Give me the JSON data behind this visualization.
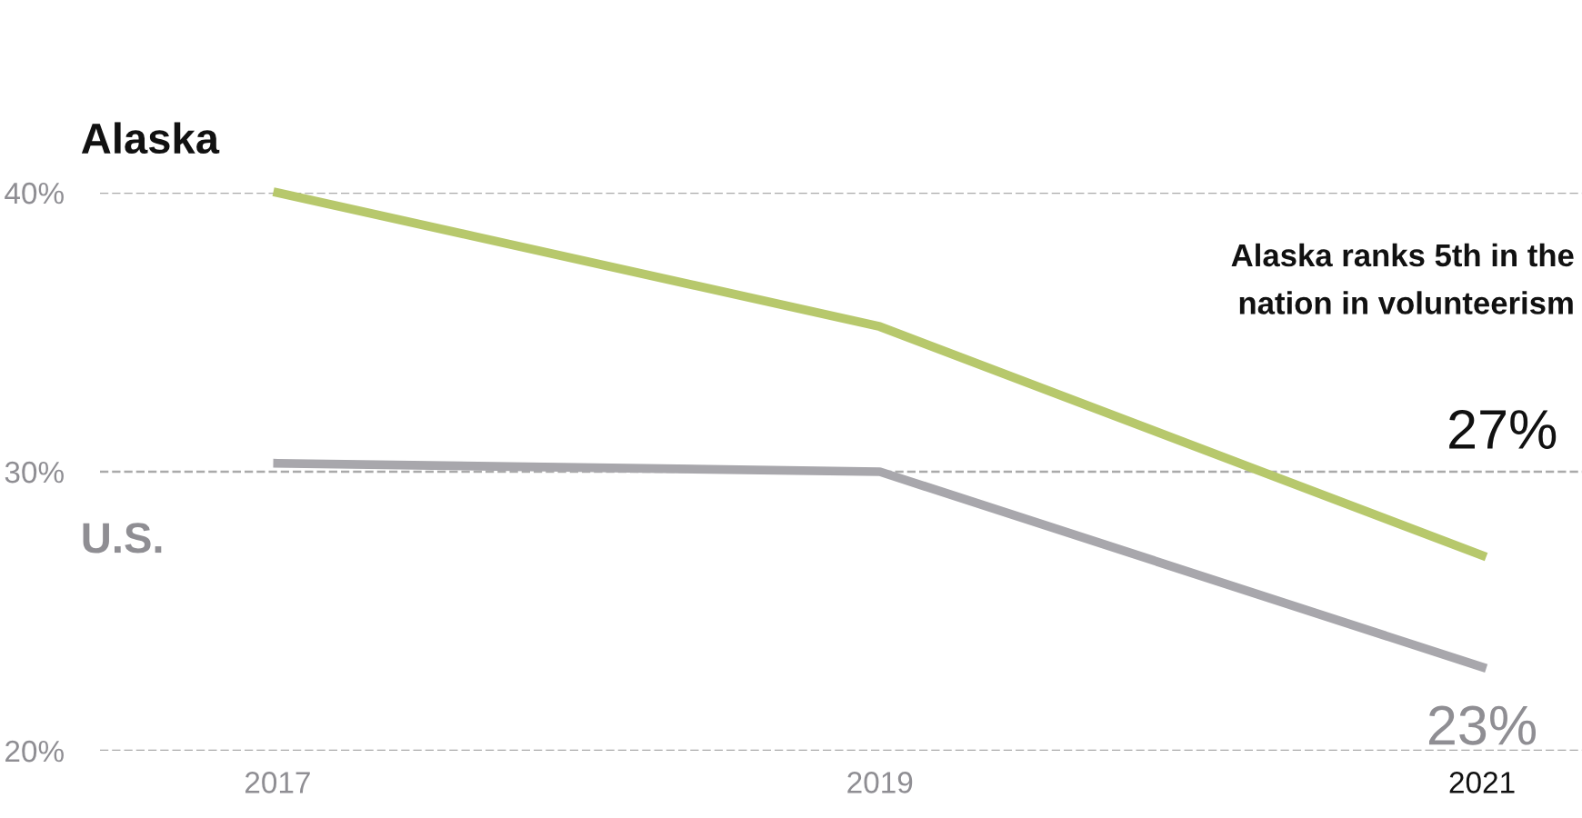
{
  "chart_data": {
    "type": "line",
    "categories": [
      "2017",
      "2019",
      "2021"
    ],
    "series": [
      {
        "name": "Alaska",
        "color": "#b7c86c",
        "values": [
          40,
          35.2,
          27
        ],
        "value_labels": [
          null,
          null,
          "27%"
        ]
      },
      {
        "name": "U.S.",
        "color": "#a8a7ac",
        "values": [
          30.3,
          30.0,
          23
        ],
        "value_labels": [
          null,
          null,
          "23%"
        ]
      }
    ],
    "ylim": [
      20,
      40
    ],
    "yticks": [
      {
        "value": 20,
        "label": "20%"
      },
      {
        "value": 30,
        "label": "30%"
      },
      {
        "value": 40,
        "label": "40%"
      }
    ],
    "grid": "y",
    "legend": false,
    "marker": "none",
    "line_style": "solid",
    "annotations": [
      {
        "text": "Alaska ranks 5th in the\nnation in volunteerism"
      }
    ]
  }
}
